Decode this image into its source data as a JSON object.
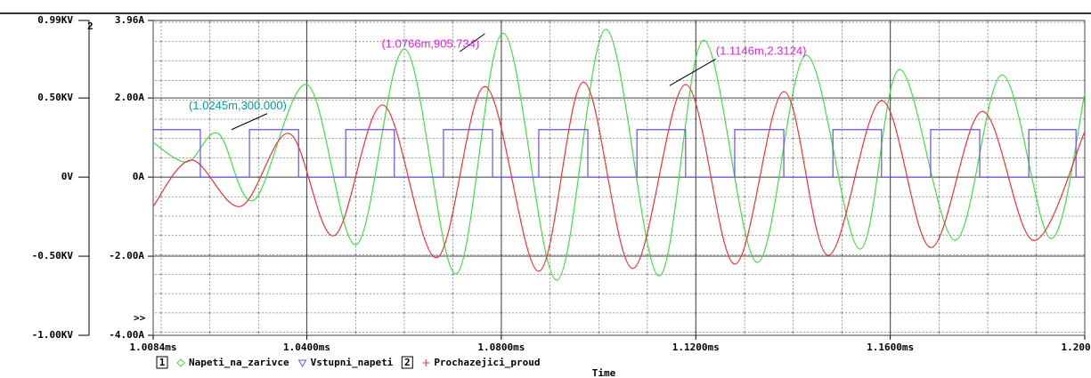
{
  "chart_data": {
    "type": "line",
    "x_label": "Time",
    "y2_label": "2",
    "marker_text": ">>",
    "legend_ids": [
      "1",
      "2"
    ],
    "xlim": [
      1.0084,
      1.2
    ],
    "xticks": [
      {
        "value": 1.0084,
        "label": "1.0084ms"
      },
      {
        "value": 1.04,
        "label": "1.0400ms"
      },
      {
        "value": 1.08,
        "label": "1.0800ms"
      },
      {
        "value": 1.12,
        "label": "1.1200ms"
      },
      {
        "value": 1.16,
        "label": "1.1600ms"
      },
      {
        "value": 1.2,
        "label": "1.2000ms"
      }
    ],
    "ylim": [
      -1.0,
      0.99
    ],
    "yticks": [
      {
        "value": 0.99,
        "label": "0.99KV"
      },
      {
        "value": 0.5,
        "label": "0.50KV"
      },
      {
        "value": 0,
        "label": "0V"
      },
      {
        "value": -0.5,
        "label": "-0.50KV"
      },
      {
        "value": -1.0,
        "label": "-1.00KV"
      }
    ],
    "y2lim": [
      -4.0,
      3.96
    ],
    "y2ticks": [
      {
        "value": 3.96,
        "label": "3.96A"
      },
      {
        "value": 2.0,
        "label": "2.00A"
      },
      {
        "value": 0,
        "label": "0A"
      },
      {
        "value": -2.0,
        "label": "-2.00A"
      },
      {
        "value": -4.0,
        "label": "-4.00A"
      }
    ],
    "grid": true,
    "series": [
      {
        "name": "Napeti_na_zarivce",
        "color": "#44dd44",
        "x": [
          1.0084,
          1.0154,
          1.0218,
          1.0291,
          1.0401,
          1.0502,
          1.0602,
          1.0707,
          1.0804,
          1.0914,
          1.1015,
          1.1124,
          1.1216,
          1.1326,
          1.1427,
          1.1537,
          1.1619,
          1.1733,
          1.183,
          1.193,
          1.2
        ],
        "values": [
          0.219,
          0.096,
          0.275,
          -0.146,
          0.584,
          -0.427,
          0.809,
          -0.612,
          0.91,
          -0.652,
          0.933,
          -0.624,
          0.865,
          -0.539,
          0.77,
          -0.455,
          0.68,
          -0.399,
          0.646,
          -0.388,
          0.528
        ]
      },
      {
        "name": "Vstupni_napeti",
        "color": "#6a4fe8",
        "x": [
          1.0084,
          1.0181,
          1.0181,
          1.0282,
          1.0282,
          1.0383,
          1.0383,
          1.048,
          1.048,
          1.058,
          1.058,
          1.0681,
          1.0681,
          1.0782,
          1.0782,
          1.0877,
          1.0877,
          1.0978,
          1.0978,
          1.1079,
          1.1079,
          1.1179,
          1.1179,
          1.128,
          1.128,
          1.1381,
          1.1381,
          1.1482,
          1.1482,
          1.1582,
          1.1582,
          1.1683,
          1.1683,
          1.1784,
          1.1784,
          1.1885,
          1.1885,
          1.1982,
          1.1982,
          1.2
        ],
        "values": [
          0.3,
          0.3,
          0,
          0,
          0.3,
          0.3,
          0,
          0,
          0.3,
          0.3,
          0,
          0,
          0.3,
          0.3,
          0,
          0,
          0.3,
          0.3,
          0,
          0,
          0.3,
          0.3,
          0,
          0,
          0.3,
          0.3,
          0,
          0,
          0.3,
          0.3,
          0,
          0,
          0.3,
          0.3,
          0,
          0,
          0.3,
          0.3,
          0,
          0
        ]
      },
      {
        "name": "Prochazejici_proud",
        "color": "#ee3333",
        "axis": "y2",
        "x": [
          1.0084,
          1.0163,
          1.0264,
          1.0364,
          1.0456,
          1.0557,
          1.0667,
          1.0767,
          1.0877,
          1.0969,
          1.107,
          1.1179,
          1.128,
          1.1381,
          1.1472,
          1.1582,
          1.1683,
          1.1789,
          1.1894,
          1.2
        ],
        "values": [
          -0.74,
          0.43,
          -0.74,
          1.1,
          -1.48,
          1.82,
          -2.04,
          2.29,
          -2.38,
          2.4,
          -2.31,
          2.34,
          -2.2,
          2.16,
          -1.98,
          1.93,
          -1.78,
          1.66,
          -1.6,
          1.15
        ]
      }
    ],
    "annotations": [
      {
        "text": "(1.0245m,300.000)",
        "x": 1.0245,
        "y": 0.3,
        "color": "#009c9c"
      },
      {
        "text": "(1.0766m,905.734)",
        "x": 1.0766,
        "y": 0.9057,
        "color": "#e020e0"
      },
      {
        "text": "(1.1146m,2.3124)",
        "x": 1.1146,
        "y": 2.3124,
        "color": "#e020e0",
        "axis": "y2"
      }
    ]
  }
}
